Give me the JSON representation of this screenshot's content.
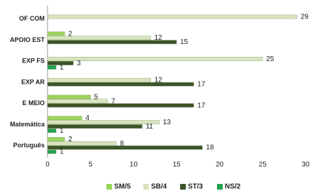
{
  "chart_data": {
    "type": "bar",
    "orientation": "horizontal",
    "categories": [
      "OF COM",
      "APOIO EST",
      "EXP FS",
      "EXP AR",
      "E MEIO",
      "Matemática",
      "Português"
    ],
    "series": [
      {
        "name": "SM/5",
        "color": "#9bd45a",
        "values": [
          null,
          2,
          null,
          null,
          5,
          4,
          2
        ]
      },
      {
        "name": "SB/4",
        "color": "#d8e4bc",
        "values": [
          29,
          12,
          25,
          12,
          7,
          13,
          8
        ]
      },
      {
        "name": "ST/3",
        "color": "#3b5526",
        "values": [
          null,
          15,
          3,
          17,
          17,
          11,
          18
        ]
      },
      {
        "name": "NS/2",
        "color": "#1fa34f",
        "values": [
          null,
          null,
          1,
          null,
          null,
          1,
          1
        ]
      }
    ],
    "xlim": [
      0,
      30
    ],
    "xticks": [
      0,
      5,
      10,
      15,
      20,
      25,
      30
    ],
    "legend": "bottom"
  }
}
